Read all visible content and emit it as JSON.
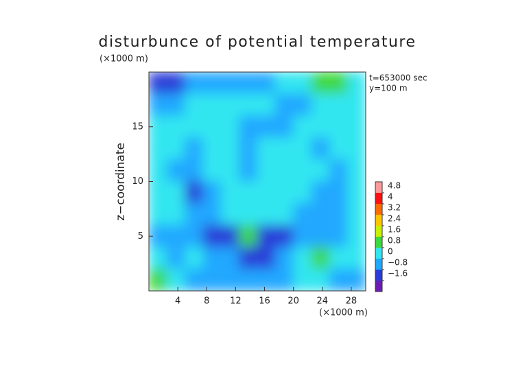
{
  "chart_data": {
    "type": "contour",
    "title": "disturbunce of potential temperature",
    "y_unit": "(×1000 m)",
    "x_unit": "(×1000 m)",
    "ylabel": "z−coordinate",
    "annotations": [
      "t=653000 sec",
      "y=100 m"
    ],
    "xlim": [
      0,
      30
    ],
    "ylim": [
      0,
      20
    ],
    "xticks": [
      4,
      8,
      12,
      16,
      20,
      24,
      28
    ],
    "yticks": [
      5,
      10,
      15
    ],
    "x": [
      1.25,
      3.75,
      6.25,
      8.75,
      11.25,
      13.75,
      16.25,
      18.75,
      21.25,
      23.75,
      26.25,
      28.75
    ],
    "y": [
      19,
      17,
      15,
      13,
      11,
      9,
      7,
      5,
      3,
      1
    ],
    "z": [
      [
        -0.9,
        -1.0,
        -0.7,
        -0.2,
        -0.6,
        -0.8,
        -0.2,
        0.3,
        0.5,
        0.9,
        1.0,
        0.6
      ],
      [
        -0.5,
        -0.3,
        0.2,
        0.2,
        0.3,
        0.2,
        0.2,
        -0.4,
        -0.6,
        0.3,
        0.4,
        0.3
      ],
      [
        0.2,
        0.3,
        0.2,
        0.1,
        0.3,
        -0.1,
        -0.3,
        -0.4,
        0.2,
        0.3,
        0.2,
        0.2
      ],
      [
        0.3,
        0.2,
        -0.2,
        0.3,
        0.3,
        -0.4,
        0.1,
        0.2,
        0.3,
        -0.2,
        0.3,
        0.2
      ],
      [
        0.3,
        -0.3,
        -0.8,
        0.2,
        0.2,
        -0.3,
        0.2,
        0.2,
        0.3,
        0.2,
        -0.2,
        0.3
      ],
      [
        0.3,
        0.1,
        -0.9,
        -0.1,
        0.3,
        0.2,
        0.2,
        0.3,
        0.2,
        -0.3,
        -0.7,
        0.2
      ],
      [
        0.2,
        0.1,
        -0.6,
        -0.8,
        0.1,
        0.3,
        0.3,
        0.2,
        -0.3,
        -0.8,
        -0.4,
        0.3
      ],
      [
        -0.6,
        -0.3,
        -0.3,
        -1.0,
        -0.9,
        1.4,
        -1.2,
        -1.0,
        -0.8,
        -0.6,
        -0.4,
        0.6
      ],
      [
        0.5,
        -0.2,
        0.2,
        -0.3,
        -0.8,
        -1.4,
        -1.0,
        -0.4,
        0.2,
        0.9,
        0.6,
        0.3
      ],
      [
        0.9,
        0.4,
        -0.3,
        -0.8,
        -0.6,
        -0.4,
        -0.5,
        -0.6,
        0.2,
        0.1,
        -0.6,
        -0.3
      ]
    ],
    "levels": [
      4.8,
      4,
      3.2,
      2.4,
      1.6,
      0.8,
      0,
      {
        "value": -0.8,
        "label": "−0.8"
      },
      {
        "value": -1.6,
        "label": "−1.6"
      }
    ],
    "colors": [
      "#ff9a9a",
      "#ff1010",
      "#ff6a00",
      "#ffc400",
      "#c8f000",
      "#3cd83c",
      "#30e6f0",
      "#20a8ff",
      "#2a3cd8",
      "#6a1cb4"
    ]
  }
}
